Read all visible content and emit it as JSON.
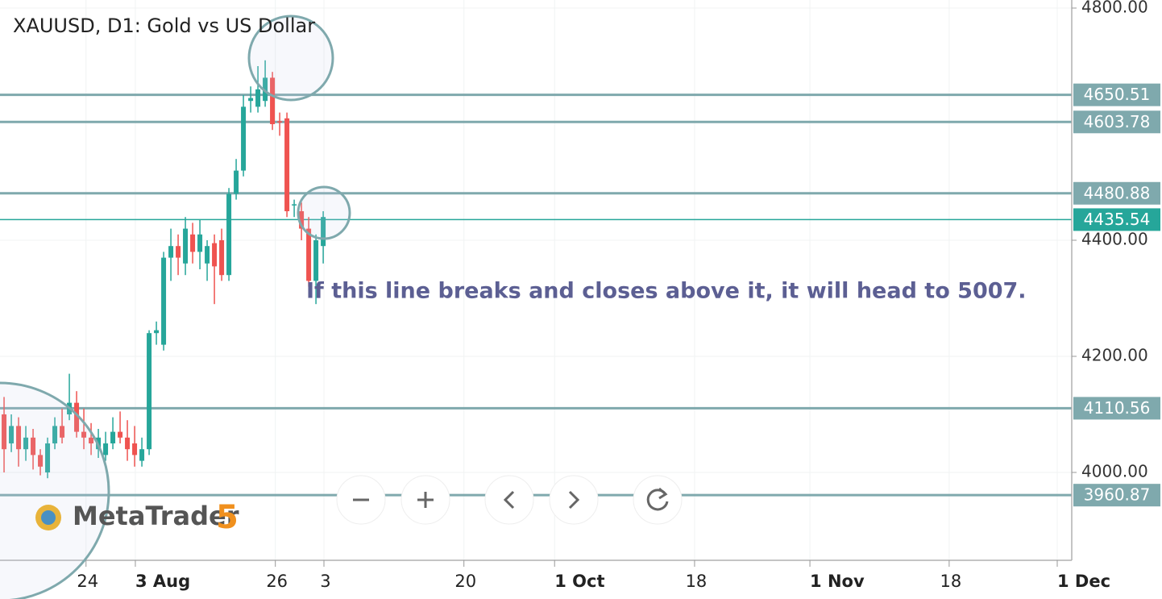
{
  "chart_data": {
    "type": "candlestick",
    "title": "XAUUSD, D1: Gold vs US Dollar",
    "annotation": "If this line breaks and closes above it, it will head to 5007.",
    "logo": {
      "name": "MetaTrader",
      "version": "5"
    },
    "up_color": "#26a69a",
    "down_color": "#ef5350",
    "open": [
      4100,
      4050,
      4080,
      4040,
      4060,
      4030,
      4000,
      4050,
      4080,
      4100,
      4120,
      4070,
      4060,
      4040,
      4030,
      4050,
      4070,
      4060,
      4050,
      4020,
      4040,
      4240,
      4220,
      4370,
      4390,
      4360,
      4410,
      4380,
      4360,
      4395,
      4400,
      4340,
      4480,
      4520,
      4640,
      4630,
      4640,
      4680,
      4605,
      4610,
      4460,
      4450,
      4420,
      4330,
      4390
    ],
    "high": [
      4130,
      4100,
      4095,
      4080,
      4075,
      4040,
      4060,
      4095,
      4110,
      4170,
      4140,
      4110,
      4085,
      4075,
      4070,
      4095,
      4105,
      4090,
      4080,
      4060,
      4245,
      4260,
      4380,
      4420,
      4410,
      4440,
      4430,
      4435,
      4400,
      4410,
      4420,
      4490,
      4540,
      4650,
      4665,
      4700,
      4710,
      4690,
      4620,
      4620,
      4470,
      4465,
      4440,
      4410,
      4450
    ],
    "low": [
      4000,
      4035,
      4010,
      4020,
      4005,
      3995,
      3990,
      4040,
      4050,
      4090,
      4060,
      4040,
      4030,
      4025,
      4020,
      4040,
      4050,
      4020,
      4010,
      4010,
      4030,
      4220,
      4210,
      4330,
      4340,
      4340,
      4360,
      4350,
      4330,
      4290,
      4330,
      4330,
      4470,
      4510,
      4620,
      4620,
      4630,
      4590,
      4580,
      4440,
      4440,
      4400,
      4320,
      4290,
      4360
    ],
    "close": [
      4040,
      4080,
      4040,
      4060,
      4030,
      4010,
      4050,
      4080,
      4060,
      4120,
      4070,
      4060,
      4050,
      4060,
      4050,
      4070,
      4060,
      4040,
      4030,
      4040,
      4240,
      4245,
      4370,
      4390,
      4370,
      4420,
      4380,
      4410,
      4390,
      4355,
      4340,
      4480,
      4520,
      4630,
      4645,
      4660,
      4680,
      4600,
      4603,
      4450,
      4462,
      4420,
      4330,
      4400,
      4440
    ],
    "xlim": [
      -0.56,
      147.2
    ],
    "xticks": [
      {
        "value": 11.3,
        "label": "24"
      },
      {
        "value": 18.1,
        "label": "3 Aug"
      },
      {
        "value": 37.4,
        "label": "26"
      },
      {
        "value": 44.1,
        "label": "3"
      },
      {
        "value": 63.4,
        "label": "20"
      },
      {
        "value": 75.9,
        "label": "1 Oct"
      },
      {
        "value": 95.2,
        "label": "18"
      },
      {
        "value": 111.1,
        "label": "1 Nov"
      },
      {
        "value": 130.3,
        "label": "18"
      },
      {
        "value": 145.2,
        "label": "1 Dec"
      }
    ],
    "ylim": [
      3848.6,
      4813.9
    ],
    "yticks": [
      {
        "value": 4000,
        "label": "4000.00"
      },
      {
        "value": 4200,
        "label": "4200.00"
      },
      {
        "value": 4400,
        "label": "4400.00"
      },
      {
        "value": 4800,
        "label": "4800.00"
      }
    ],
    "levels": [
      4650.51,
      4603.78,
      4480.88,
      4110.56,
      3960.87
    ],
    "level_color": "#7fa9ad",
    "current_price": 4435.54,
    "grid": true
  }
}
